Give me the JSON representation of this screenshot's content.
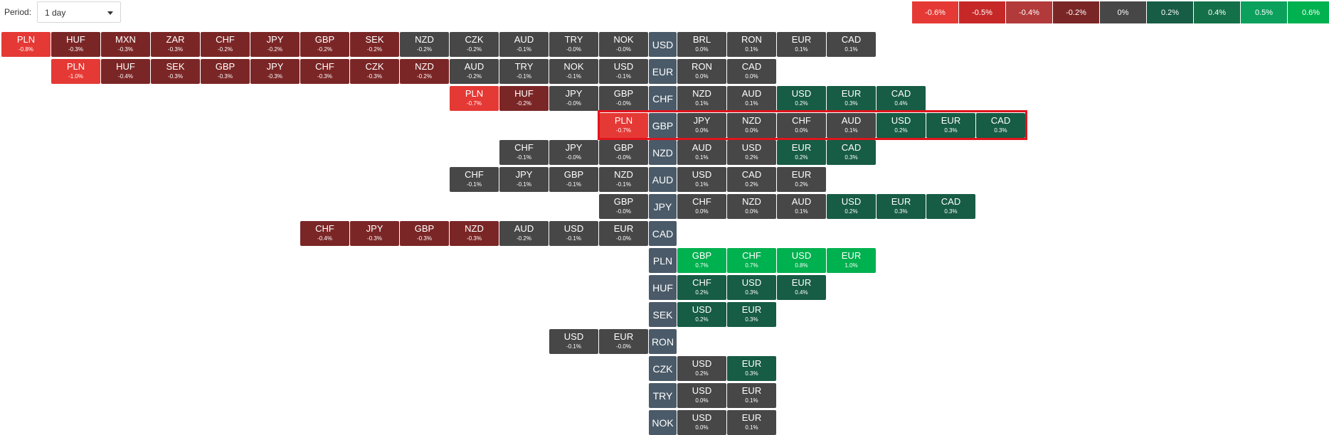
{
  "toolbar": {
    "period_label": "Period:",
    "period_value": "1 day"
  },
  "colors": {
    "n6": "#e53935",
    "n5": "#c62828",
    "n4": "#b23a3a",
    "n2": "#7b2626",
    "z": "#474747",
    "p2": "#175c44",
    "p4": "#147049",
    "p5": "#0ba15d",
    "p6": "#00b14f"
  },
  "scale": [
    {
      "label": "-0.6%",
      "tone": "n6"
    },
    {
      "label": "-0.5%",
      "tone": "n5"
    },
    {
      "label": "-0.4%",
      "tone": "n4"
    },
    {
      "label": "-0.2%",
      "tone": "n2"
    },
    {
      "label": "0%",
      "tone": "z"
    },
    {
      "label": "0.2%",
      "tone": "p2"
    },
    {
      "label": "0.4%",
      "tone": "p4"
    },
    {
      "label": "0.5%",
      "tone": "p5"
    },
    {
      "label": "0.6%",
      "tone": "p6"
    }
  ],
  "rows": [
    {
      "base": "USD",
      "left": [
        [
          "PLN",
          "-0.8%",
          "n6"
        ],
        [
          "HUF",
          "-0.3%",
          "n2"
        ],
        [
          "MXN",
          "-0.3%",
          "n2"
        ],
        [
          "ZAR",
          "-0.3%",
          "n2"
        ],
        [
          "CHF",
          "-0.2%",
          "n2"
        ],
        [
          "JPY",
          "-0.2%",
          "n2"
        ],
        [
          "GBP",
          "-0.2%",
          "n2"
        ],
        [
          "SEK",
          "-0.2%",
          "n2"
        ],
        [
          "NZD",
          "-0.2%",
          "z"
        ],
        [
          "CZK",
          "-0.2%",
          "z"
        ],
        [
          "AUD",
          "-0.1%",
          "z"
        ],
        [
          "TRY",
          "-0.0%",
          "z"
        ],
        [
          "NOK",
          "-0.0%",
          "z"
        ]
      ],
      "right": [
        [
          "BRL",
          "0.0%",
          "z"
        ],
        [
          "RON",
          "0.1%",
          "z"
        ],
        [
          "EUR",
          "0.1%",
          "z"
        ],
        [
          "CAD",
          "0.1%",
          "z"
        ]
      ]
    },
    {
      "base": "EUR",
      "left": [
        [
          "PLN",
          "-1.0%",
          "n6"
        ],
        [
          "HUF",
          "-0.4%",
          "n2"
        ],
        [
          "SEK",
          "-0.3%",
          "n2"
        ],
        [
          "GBP",
          "-0.3%",
          "n2"
        ],
        [
          "JPY",
          "-0.3%",
          "n2"
        ],
        [
          "CHF",
          "-0.3%",
          "n2"
        ],
        [
          "CZK",
          "-0.3%",
          "n2"
        ],
        [
          "NZD",
          "-0.2%",
          "n2"
        ],
        [
          "AUD",
          "-0.2%",
          "z"
        ],
        [
          "TRY",
          "-0.1%",
          "z"
        ],
        [
          "NOK",
          "-0.1%",
          "z"
        ],
        [
          "USD",
          "-0.1%",
          "z"
        ]
      ],
      "right": [
        [
          "RON",
          "0.0%",
          "z"
        ],
        [
          "CAD",
          "0.0%",
          "z"
        ]
      ]
    },
    {
      "base": "CHF",
      "left": [
        [
          "PLN",
          "-0.7%",
          "n6"
        ],
        [
          "HUF",
          "-0.2%",
          "n2"
        ],
        [
          "JPY",
          "-0.0%",
          "z"
        ],
        [
          "GBP",
          "-0.0%",
          "z"
        ]
      ],
      "right": [
        [
          "NZD",
          "0.1%",
          "z"
        ],
        [
          "AUD",
          "0.1%",
          "z"
        ],
        [
          "USD",
          "0.2%",
          "p2"
        ],
        [
          "EUR",
          "0.3%",
          "p2"
        ],
        [
          "CAD",
          "0.4%",
          "p2"
        ]
      ]
    },
    {
      "base": "GBP",
      "left": [
        [
          "PLN",
          "-0.7%",
          "n6"
        ]
      ],
      "right": [
        [
          "JPY",
          "0.0%",
          "z"
        ],
        [
          "NZD",
          "0.0%",
          "z"
        ],
        [
          "CHF",
          "0.0%",
          "z"
        ],
        [
          "AUD",
          "0.1%",
          "z"
        ],
        [
          "USD",
          "0.2%",
          "p2"
        ],
        [
          "EUR",
          "0.3%",
          "p2"
        ],
        [
          "CAD",
          "0.3%",
          "p2"
        ]
      ]
    },
    {
      "base": "NZD",
      "left": [
        [
          "CHF",
          "-0.1%",
          "z"
        ],
        [
          "JPY",
          "-0.0%",
          "z"
        ],
        [
          "GBP",
          "-0.0%",
          "z"
        ]
      ],
      "right": [
        [
          "AUD",
          "0.1%",
          "z"
        ],
        [
          "USD",
          "0.2%",
          "z"
        ],
        [
          "EUR",
          "0.2%",
          "p2"
        ],
        [
          "CAD",
          "0.3%",
          "p2"
        ]
      ]
    },
    {
      "base": "AUD",
      "left": [
        [
          "CHF",
          "-0.1%",
          "z"
        ],
        [
          "JPY",
          "-0.1%",
          "z"
        ],
        [
          "GBP",
          "-0.1%",
          "z"
        ],
        [
          "NZD",
          "-0.1%",
          "z"
        ]
      ],
      "right": [
        [
          "USD",
          "0.1%",
          "z"
        ],
        [
          "CAD",
          "0.2%",
          "z"
        ],
        [
          "EUR",
          "0.2%",
          "z"
        ]
      ]
    },
    {
      "base": "JPY",
      "left": [
        [
          "GBP",
          "-0.0%",
          "z"
        ]
      ],
      "right": [
        [
          "CHF",
          "0.0%",
          "z"
        ],
        [
          "NZD",
          "0.0%",
          "z"
        ],
        [
          "AUD",
          "0.1%",
          "z"
        ],
        [
          "USD",
          "0.2%",
          "p2"
        ],
        [
          "EUR",
          "0.3%",
          "p2"
        ],
        [
          "CAD",
          "0.3%",
          "p2"
        ]
      ]
    },
    {
      "base": "CAD",
      "left": [
        [
          "CHF",
          "-0.4%",
          "n2"
        ],
        [
          "JPY",
          "-0.3%",
          "n2"
        ],
        [
          "GBP",
          "-0.3%",
          "n2"
        ],
        [
          "NZD",
          "-0.3%",
          "n2"
        ],
        [
          "AUD",
          "-0.2%",
          "z"
        ],
        [
          "USD",
          "-0.1%",
          "z"
        ],
        [
          "EUR",
          "-0.0%",
          "z"
        ]
      ],
      "right": []
    },
    {
      "base": "PLN",
      "left": [],
      "right": [
        [
          "GBP",
          "0.7%",
          "p6"
        ],
        [
          "CHF",
          "0.7%",
          "p6"
        ],
        [
          "USD",
          "0.8%",
          "p6"
        ],
        [
          "EUR",
          "1.0%",
          "p6"
        ]
      ]
    },
    {
      "base": "HUF",
      "left": [],
      "right": [
        [
          "CHF",
          "0.2%",
          "p2"
        ],
        [
          "USD",
          "0.3%",
          "p2"
        ],
        [
          "EUR",
          "0.4%",
          "p2"
        ]
      ]
    },
    {
      "base": "SEK",
      "left": [],
      "right": [
        [
          "USD",
          "0.2%",
          "p2"
        ],
        [
          "EUR",
          "0.3%",
          "p2"
        ]
      ]
    },
    {
      "base": "RON",
      "left": [
        [
          "USD",
          "-0.1%",
          "z"
        ],
        [
          "EUR",
          "-0.0%",
          "z"
        ]
      ],
      "right": []
    },
    {
      "base": "CZK",
      "left": [],
      "right": [
        [
          "USD",
          "0.2%",
          "z"
        ],
        [
          "EUR",
          "0.3%",
          "p2"
        ]
      ]
    },
    {
      "base": "TRY",
      "left": [],
      "right": [
        [
          "USD",
          "0.0%",
          "z"
        ],
        [
          "EUR",
          "0.1%",
          "z"
        ]
      ]
    },
    {
      "base": "NOK",
      "left": [],
      "right": [
        [
          "USD",
          "0.0%",
          "z"
        ],
        [
          "EUR",
          "0.1%",
          "z"
        ]
      ]
    }
  ]
}
